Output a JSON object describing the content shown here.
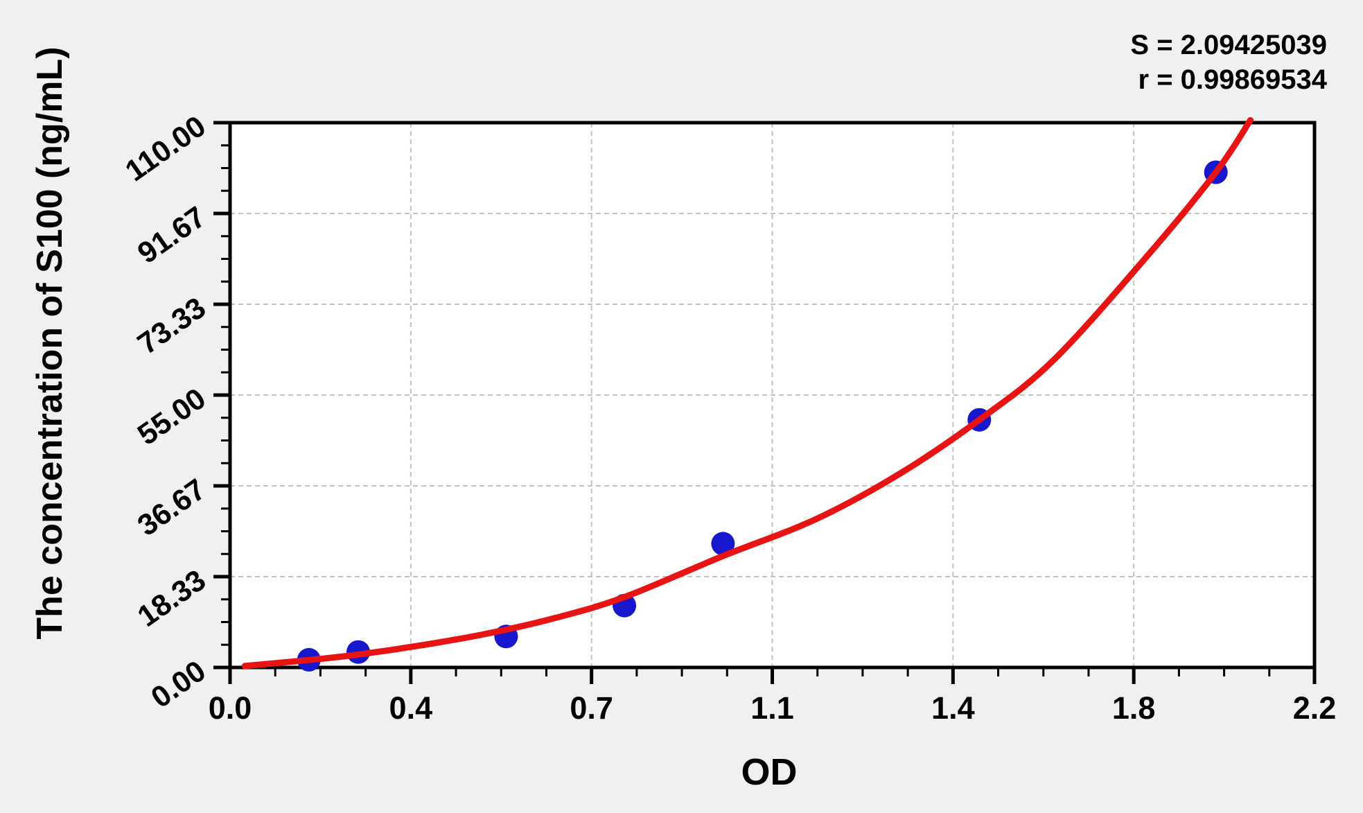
{
  "page": {
    "background_color": "#f0f0f0",
    "plot_background_color": "#ffffff"
  },
  "stats": {
    "s_line": "S = 2.09425039",
    "r_line": "r = 0.99869534"
  },
  "chart_data": {
    "type": "scatter",
    "title": "",
    "xlabel": "OD",
    "ylabel": "The concentration of S100 (ng/mL)",
    "xlim": [
      0,
      2.2
    ],
    "ylim": [
      0,
      110
    ],
    "x_tick_labels": [
      "0.0",
      "0.4",
      "0.7",
      "1.1",
      "1.4",
      "1.8",
      "2.2"
    ],
    "y_tick_labels": [
      "0.00",
      "18.33",
      "36.67",
      "55.00",
      "73.33",
      "91.67",
      "110.00"
    ],
    "minor_ticks_per_interval": 3,
    "grid": "dashed gray gridlines at major ticks",
    "legend_position": "none",
    "regression": {
      "S": 2.09425039,
      "r": 0.99869534
    },
    "colors": {
      "points": "#1717cd",
      "curve": "#e81313",
      "grid": "#c2c2c2",
      "axis": "#000000"
    },
    "series": [
      {
        "name": "standard-points",
        "type": "scatter",
        "color": "#1717cd",
        "marker_radius_px": 17,
        "points_od_conc": [
          [
            0.16,
            1.56
          ],
          [
            0.26,
            3.12
          ],
          [
            0.56,
            6.25
          ],
          [
            0.8,
            12.5
          ],
          [
            1.0,
            25
          ],
          [
            1.52,
            50
          ],
          [
            2.0,
            100
          ]
        ]
      },
      {
        "name": "fitted-curve",
        "type": "line",
        "color": "#e81313",
        "stroke_px": 9,
        "points_od_conc": [
          [
            0.03,
            0.3
          ],
          [
            0.16,
            1.5
          ],
          [
            0.26,
            2.6
          ],
          [
            0.39,
            4.5
          ],
          [
            0.52,
            6.8
          ],
          [
            0.66,
            10.0
          ],
          [
            0.8,
            14.2
          ],
          [
            1.0,
            22.5
          ],
          [
            1.19,
            30.0
          ],
          [
            1.36,
            39.2
          ],
          [
            1.52,
            50.0
          ],
          [
            1.67,
            62.0
          ],
          [
            1.86,
            83.0
          ],
          [
            2.0,
            100.0
          ],
          [
            2.07,
            110.5
          ]
        ]
      }
    ]
  }
}
